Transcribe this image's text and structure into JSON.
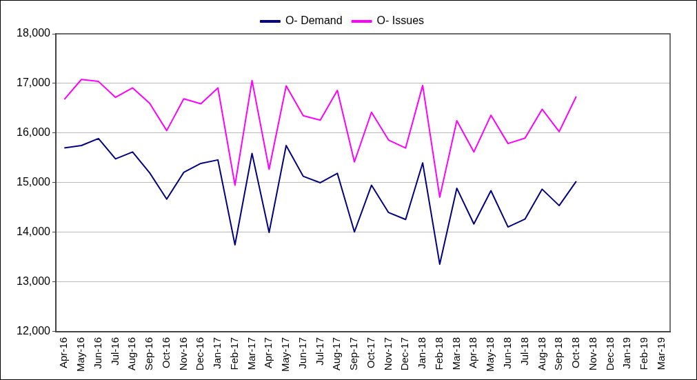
{
  "chart_data": {
    "type": "line",
    "categories": [
      "Apr-16",
      "May-16",
      "Jun-16",
      "Jul-16",
      "Aug-16",
      "Sep-16",
      "Oct-16",
      "Nov-16",
      "Dec-16",
      "Jan-17",
      "Feb-17",
      "Mar-17",
      "Apr-17",
      "May-17",
      "Jun-17",
      "Jul-17",
      "Aug-17",
      "Sep-17",
      "Oct-17",
      "Nov-17",
      "Dec-17",
      "Jan-18",
      "Feb-18",
      "Mar-18",
      "Apr-18",
      "May-18",
      "Jun-18",
      "Jul-18",
      "Aug-18",
      "Sep-18",
      "Oct-18",
      "Nov-18",
      "Dec-18",
      "Jan-19",
      "Feb-19",
      "Mar-19"
    ],
    "series": [
      {
        "name": "O- Demand",
        "color": "#000080",
        "values": [
          15700,
          15750,
          15890,
          15480,
          15620,
          15200,
          14670,
          15210,
          15390,
          15460,
          13750,
          15590,
          14000,
          15750,
          15130,
          15000,
          15190,
          14010,
          14950,
          14400,
          14260,
          15400,
          13360,
          14890,
          14170,
          14840,
          14110,
          14270,
          14870,
          14540,
          15030,
          null,
          null,
          null,
          null,
          null
        ]
      },
      {
        "name": "O- Issues",
        "color": "#ff00ff",
        "values": [
          16680,
          17080,
          17040,
          16720,
          16910,
          16600,
          16050,
          16690,
          16590,
          16910,
          14950,
          17060,
          15270,
          16950,
          16350,
          16260,
          16860,
          15420,
          16420,
          15860,
          15700,
          16960,
          14710,
          16250,
          15620,
          16360,
          15790,
          15900,
          16480,
          16030,
          16740,
          null,
          null,
          null,
          null,
          null
        ]
      }
    ],
    "ylim": [
      12000,
      18000
    ],
    "yticks": [
      {
        "value": 12000,
        "label": "12,000"
      },
      {
        "value": 13000,
        "label": "13,000"
      },
      {
        "value": 14000,
        "label": "14,000"
      },
      {
        "value": 15000,
        "label": "15,000"
      },
      {
        "value": 16000,
        "label": "16,000"
      },
      {
        "value": 17000,
        "label": "17,000"
      },
      {
        "value": 18000,
        "label": "18,000"
      }
    ],
    "grid": "y",
    "legend": "top",
    "marker": "none",
    "line_style": "solid"
  }
}
